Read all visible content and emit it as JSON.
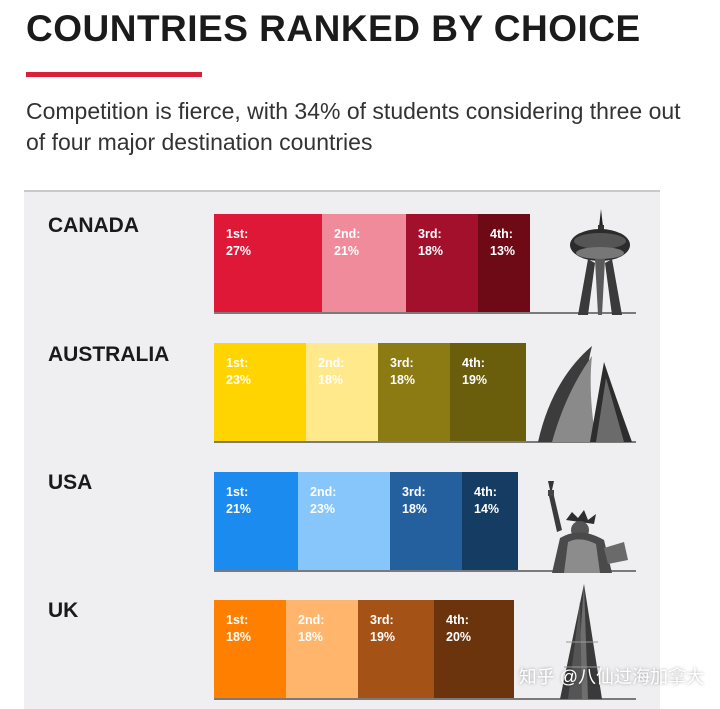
{
  "header": {
    "title": "COUNTRIES RANKED BY CHOICE",
    "subtitle": "Competition is fierce, with 34% of students considering three out of four major destination countries"
  },
  "watermark": "知乎 @八仙过海加拿大",
  "colors": {
    "accent": "#d9203a",
    "panel_bg": "#efeff1"
  },
  "chart_data": {
    "type": "bar",
    "orientation": "horizontal-stacked",
    "categories": [
      "CANADA",
      "AUSTRALIA",
      "USA",
      "UK"
    ],
    "series": [
      {
        "name": "1st",
        "values": [
          27,
          23,
          21,
          18
        ]
      },
      {
        "name": "2nd",
        "values": [
          21,
          18,
          23,
          18
        ]
      },
      {
        "name": "3rd",
        "values": [
          18,
          18,
          18,
          19
        ]
      },
      {
        "name": "4th",
        "values": [
          13,
          19,
          14,
          20
        ]
      }
    ],
    "segment_labels": [
      [
        "1st:",
        "2nd:",
        "3rd:",
        "4th:"
      ],
      [
        "27%",
        "21%",
        "18%",
        "13%"
      ],
      [
        "23%",
        "18%",
        "18%",
        "19%"
      ],
      [
        "21%",
        "23%",
        "18%",
        "14%"
      ],
      [
        "18%",
        "18%",
        "19%",
        "20%"
      ]
    ],
    "palettes": [
      [
        "#e01838",
        "#ef8b9b",
        "#a3102c",
        "#6e0916"
      ],
      [
        "#ffd400",
        "#ffe98a",
        "#8c7a12",
        "#6a5d0c"
      ],
      [
        "#1c8bf0",
        "#86c6fb",
        "#24609e",
        "#153d63"
      ],
      [
        "#ff8000",
        "#ffb56b",
        "#a45216",
        "#6b340d"
      ]
    ],
    "landmark_icons": [
      "cn-tower-icon",
      "sydney-opera-house-icon",
      "statue-of-liberty-icon",
      "the-shard-icon"
    ],
    "unit": "%"
  }
}
